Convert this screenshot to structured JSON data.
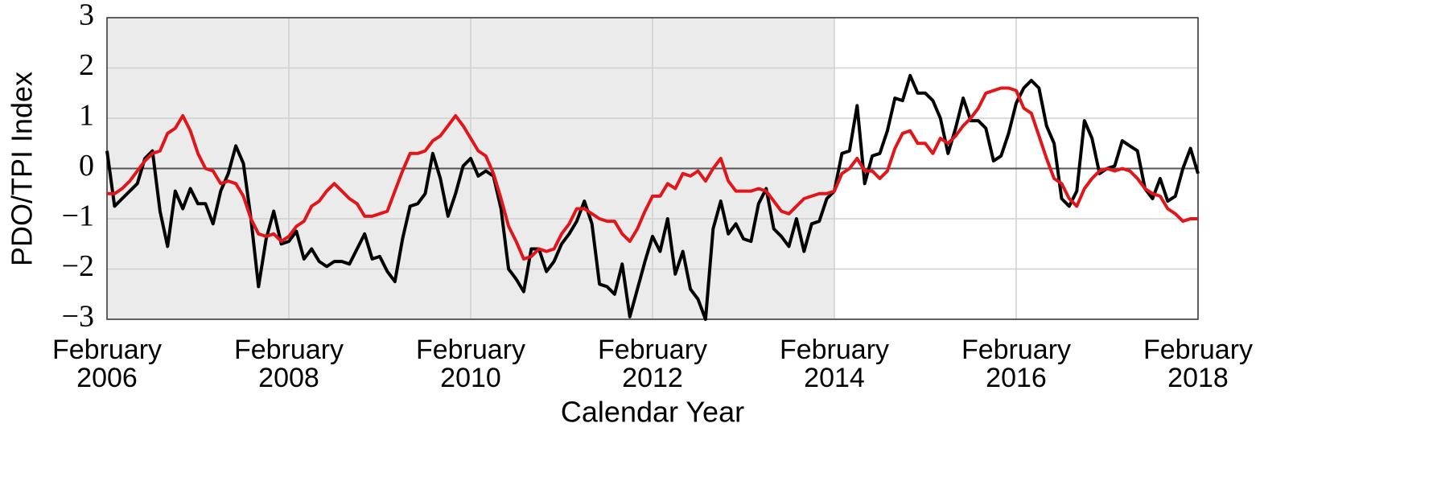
{
  "chart_data": {
    "type": "line",
    "ylabel": "PDO/TPI Index",
    "xlabel": "Calendar Year",
    "x": [
      "2006-02",
      "2006-03",
      "2006-04",
      "2006-05",
      "2006-06",
      "2006-07",
      "2006-08",
      "2006-09",
      "2006-10",
      "2006-11",
      "2006-12",
      "2007-01",
      "2007-02",
      "2007-03",
      "2007-04",
      "2007-05",
      "2007-06",
      "2007-07",
      "2007-08",
      "2007-09",
      "2007-10",
      "2007-11",
      "2007-12",
      "2008-01",
      "2008-02",
      "2008-03",
      "2008-04",
      "2008-05",
      "2008-06",
      "2008-07",
      "2008-08",
      "2008-09",
      "2008-10",
      "2008-11",
      "2008-12",
      "2009-01",
      "2009-02",
      "2009-03",
      "2009-04",
      "2009-05",
      "2009-06",
      "2009-07",
      "2009-08",
      "2009-09",
      "2009-10",
      "2009-11",
      "2009-12",
      "2010-01",
      "2010-02",
      "2010-03",
      "2010-04",
      "2010-05",
      "2010-06",
      "2010-07",
      "2010-08",
      "2010-09",
      "2010-10",
      "2010-11",
      "2010-12",
      "2011-01",
      "2011-02",
      "2011-03",
      "2011-04",
      "2011-05",
      "2011-06",
      "2011-07",
      "2011-08",
      "2011-09",
      "2011-10",
      "2011-11",
      "2011-12",
      "2012-01",
      "2012-02",
      "2012-03",
      "2012-04",
      "2012-05",
      "2012-06",
      "2012-07",
      "2012-08",
      "2012-09",
      "2012-10",
      "2012-11",
      "2012-12",
      "2013-01",
      "2013-02",
      "2013-03",
      "2013-04",
      "2013-05",
      "2013-06",
      "2013-07",
      "2013-08",
      "2013-09",
      "2013-10",
      "2013-11",
      "2013-12",
      "2014-01",
      "2014-02",
      "2014-03",
      "2014-04",
      "2014-05",
      "2014-06",
      "2014-07",
      "2014-08",
      "2014-09",
      "2014-10",
      "2014-11",
      "2014-12",
      "2015-01",
      "2015-02",
      "2015-03",
      "2015-04",
      "2015-05",
      "2015-06",
      "2015-07",
      "2015-08",
      "2015-09",
      "2015-10",
      "2015-11",
      "2015-12",
      "2016-01",
      "2016-02",
      "2016-03",
      "2016-04",
      "2016-05",
      "2016-06",
      "2016-07",
      "2016-08",
      "2016-09",
      "2016-10",
      "2016-11",
      "2016-12",
      "2017-01",
      "2017-02",
      "2017-03",
      "2017-04",
      "2017-05",
      "2017-06",
      "2017-07",
      "2017-08",
      "2017-09",
      "2017-10",
      "2017-11",
      "2017-12",
      "2018-01",
      "2018-02"
    ],
    "series": [
      {
        "color": "#000000",
        "values": [
          0.35,
          -0.75,
          -0.6,
          -0.45,
          -0.3,
          0.2,
          0.35,
          -0.85,
          -1.55,
          -0.45,
          -0.8,
          -0.4,
          -0.7,
          -0.7,
          -1.1,
          -0.45,
          -0.1,
          0.45,
          0.1,
          -1.0,
          -2.35,
          -1.4,
          -0.85,
          -1.5,
          -1.45,
          -1.25,
          -1.8,
          -1.6,
          -1.85,
          -1.95,
          -1.85,
          -1.85,
          -1.9,
          -1.6,
          -1.3,
          -1.8,
          -1.75,
          -2.05,
          -2.25,
          -1.4,
          -0.75,
          -0.7,
          -0.5,
          0.3,
          -0.2,
          -0.95,
          -0.5,
          0.05,
          0.2,
          -0.15,
          -0.05,
          -0.15,
          -0.8,
          -2.0,
          -2.2,
          -2.45,
          -1.6,
          -1.6,
          -2.05,
          -1.85,
          -1.5,
          -1.3,
          -1.05,
          -0.65,
          -1.1,
          -2.3,
          -2.35,
          -2.5,
          -1.9,
          -2.95,
          -2.4,
          -1.85,
          -1.35,
          -1.65,
          -1.0,
          -2.1,
          -1.65,
          -2.4,
          -2.6,
          -3.0,
          -1.2,
          -0.65,
          -1.3,
          -1.1,
          -1.4,
          -1.45,
          -0.7,
          -0.4,
          -1.2,
          -1.35,
          -1.55,
          -1.0,
          -1.65,
          -1.1,
          -1.05,
          -0.6,
          -0.45,
          0.3,
          0.35,
          1.25,
          -0.3,
          0.25,
          0.3,
          0.75,
          1.4,
          1.35,
          1.85,
          1.5,
          1.5,
          1.35,
          1.0,
          0.3,
          0.8,
          1.4,
          0.95,
          0.95,
          0.8,
          0.15,
          0.25,
          0.7,
          1.3,
          1.6,
          1.75,
          1.6,
          0.85,
          0.5,
          -0.6,
          -0.75,
          -0.45,
          0.95,
          0.6,
          -0.1,
          0.0,
          0.05,
          0.55,
          0.45,
          0.35,
          -0.4,
          -0.6,
          -0.2,
          -0.65,
          -0.55,
          0.0,
          0.4,
          -0.1
        ]
      },
      {
        "color": "#e0161b",
        "values": [
          -0.5,
          -0.5,
          -0.4,
          -0.25,
          -0.05,
          0.15,
          0.3,
          0.35,
          0.7,
          0.8,
          1.05,
          0.75,
          0.3,
          0.0,
          -0.05,
          -0.3,
          -0.25,
          -0.3,
          -0.55,
          -1.0,
          -1.3,
          -1.35,
          -1.3,
          -1.45,
          -1.35,
          -1.15,
          -1.05,
          -0.75,
          -0.65,
          -0.45,
          -0.3,
          -0.45,
          -0.6,
          -0.7,
          -0.95,
          -0.95,
          -0.9,
          -0.85,
          -0.45,
          -0.05,
          0.3,
          0.3,
          0.35,
          0.55,
          0.65,
          0.85,
          1.05,
          0.85,
          0.6,
          0.35,
          0.25,
          -0.1,
          -0.6,
          -1.15,
          -1.45,
          -1.8,
          -1.75,
          -1.6,
          -1.65,
          -1.6,
          -1.3,
          -1.1,
          -0.8,
          -0.8,
          -0.9,
          -1.0,
          -1.05,
          -1.05,
          -1.3,
          -1.45,
          -1.2,
          -0.85,
          -0.55,
          -0.55,
          -0.3,
          -0.4,
          -0.1,
          -0.15,
          -0.05,
          -0.25,
          0.0,
          0.2,
          -0.25,
          -0.45,
          -0.45,
          -0.45,
          -0.4,
          -0.45,
          -0.65,
          -0.85,
          -0.9,
          -0.75,
          -0.6,
          -0.55,
          -0.5,
          -0.5,
          -0.45,
          -0.1,
          0.0,
          0.2,
          -0.05,
          -0.05,
          -0.2,
          -0.05,
          0.4,
          0.7,
          0.75,
          0.5,
          0.5,
          0.3,
          0.6,
          0.5,
          0.65,
          0.85,
          1.0,
          1.2,
          1.5,
          1.55,
          1.6,
          1.6,
          1.55,
          1.2,
          1.1,
          0.65,
          0.2,
          -0.2,
          -0.3,
          -0.6,
          -0.75,
          -0.4,
          -0.2,
          -0.05,
          0.0,
          -0.05,
          0.0,
          -0.05,
          -0.2,
          -0.4,
          -0.5,
          -0.55,
          -0.8,
          -0.9,
          -1.05,
          -1.0,
          -1.0
        ]
      }
    ],
    "xlim": [
      "2006-02",
      "2018-02"
    ],
    "xticks": [
      {
        "value": "2006-02",
        "label": [
          "February",
          "2006"
        ]
      },
      {
        "value": "2008-02",
        "label": [
          "February",
          "2008"
        ]
      },
      {
        "value": "2010-02",
        "label": [
          "February",
          "2010"
        ]
      },
      {
        "value": "2012-02",
        "label": [
          "February",
          "2012"
        ]
      },
      {
        "value": "2014-02",
        "label": [
          "February",
          "2014"
        ]
      },
      {
        "value": "2016-02",
        "label": [
          "February",
          "2016"
        ]
      },
      {
        "value": "2018-02",
        "label": [
          "February",
          "2018"
        ]
      }
    ],
    "ylim": [
      -3,
      3
    ],
    "yticks": [
      {
        "value": -3,
        "label": "−3"
      },
      {
        "value": -2,
        "label": "−2"
      },
      {
        "value": -1,
        "label": "−1"
      },
      0,
      1,
      2,
      3
    ],
    "grid": true,
    "zero_line": true,
    "shade": {
      "from": "2006-02",
      "to": "2014-02",
      "color": "#ebebeb"
    }
  }
}
